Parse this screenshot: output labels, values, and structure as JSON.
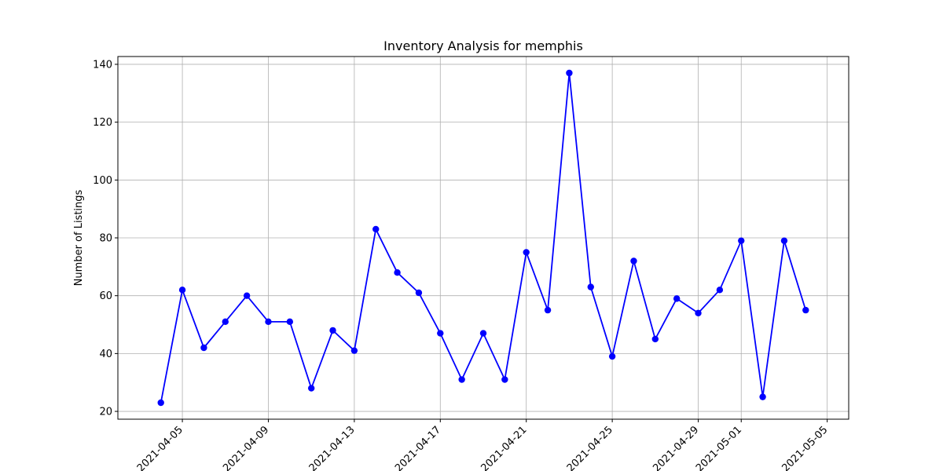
{
  "chart_data": {
    "type": "line",
    "title": "Inventory Analysis for memphis",
    "xlabel": "",
    "ylabel": "Number of Listings",
    "x": [
      "2021-04-04",
      "2021-04-05",
      "2021-04-06",
      "2021-04-07",
      "2021-04-08",
      "2021-04-09",
      "2021-04-10",
      "2021-04-11",
      "2021-04-12",
      "2021-04-13",
      "2021-04-14",
      "2021-04-15",
      "2021-04-16",
      "2021-04-17",
      "2021-04-18",
      "2021-04-19",
      "2021-04-20",
      "2021-04-21",
      "2021-04-22",
      "2021-04-23",
      "2021-04-24",
      "2021-04-25",
      "2021-04-26",
      "2021-04-27",
      "2021-04-28",
      "2021-04-29",
      "2021-04-30",
      "2021-05-01",
      "2021-05-02",
      "2021-05-03",
      "2021-05-04"
    ],
    "series": [
      {
        "values": [
          23,
          62,
          42,
          51,
          60,
          51,
          51,
          28,
          48,
          41,
          83,
          68,
          61,
          47,
          31,
          47,
          31,
          75,
          55,
          137,
          63,
          39,
          72,
          45,
          59,
          54,
          62,
          79,
          25,
          79,
          55
        ]
      }
    ],
    "xlim": [
      "2021-04-02",
      "2021-05-06"
    ],
    "ylim": [
      17.3,
      142.7
    ],
    "xticks": [
      "2021-04-05",
      "2021-04-09",
      "2021-04-13",
      "2021-04-17",
      "2021-04-21",
      "2021-04-25",
      "2021-04-29",
      "2021-05-01",
      "2021-05-05"
    ],
    "yticks": [
      20,
      40,
      60,
      80,
      100,
      120,
      140
    ],
    "grid": true,
    "line_color": "#0000ff",
    "marker": "circle"
  }
}
